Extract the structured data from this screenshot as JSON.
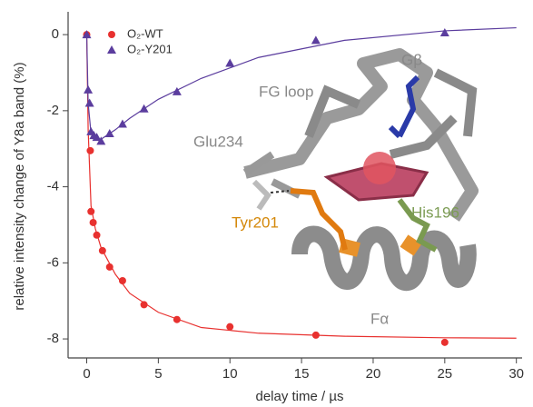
{
  "chart_data": {
    "type": "scatter",
    "xlabel": "delay time / µs",
    "ylabel": "relative intensity change of Y8a band (%)",
    "xlim": [
      -1.3,
      30.4
    ],
    "ylim": [
      -8.5,
      0.6
    ],
    "xticks": [
      0,
      5,
      10,
      15,
      20,
      25,
      30
    ],
    "yticks": [
      0,
      -2,
      -4,
      -6,
      -8
    ],
    "legend": "upper left",
    "series": [
      {
        "name": "O₂-WT",
        "color": "#e8312f",
        "marker": "circle",
        "x": [
          0,
          0.25,
          0.3,
          0.45,
          0.7,
          1.1,
          1.6,
          2.5,
          4,
          6.3,
          10,
          16,
          25
        ],
        "values": [
          0,
          -3.05,
          -4.65,
          -4.94,
          -5.27,
          -5.68,
          -6.11,
          -6.47,
          -7.1,
          -7.49,
          -7.68,
          -7.9,
          -8.09
        ],
        "fit": {
          "x": [
            0,
            0.1,
            0.3,
            0.6,
            1,
            2,
            3,
            5,
            8,
            12,
            18,
            25,
            30
          ],
          "values": [
            0,
            -2.5,
            -4.5,
            -5.1,
            -5.6,
            -6.3,
            -6.8,
            -7.3,
            -7.7,
            -7.85,
            -7.93,
            -7.97,
            -7.98
          ]
        }
      },
      {
        "name": "O₂-Y201",
        "color": "#5b3d9e",
        "marker": "triangle",
        "x": [
          0,
          0.1,
          0.2,
          0.3,
          0.5,
          0.7,
          1.0,
          1.6,
          2.5,
          4,
          6.3,
          10,
          16,
          25
        ],
        "values": [
          0,
          -1.45,
          -1.8,
          -2.55,
          -2.65,
          -2.7,
          -2.8,
          -2.6,
          -2.35,
          -1.95,
          -1.5,
          -0.75,
          -0.15,
          0.05
        ],
        "fit": {
          "x": [
            0,
            0.1,
            0.3,
            0.6,
            1,
            2,
            3,
            5,
            8,
            12,
            18,
            25,
            30
          ],
          "values": [
            0,
            -1.8,
            -2.6,
            -2.75,
            -2.75,
            -2.5,
            -2.2,
            -1.7,
            -1.15,
            -0.6,
            -0.15,
            0.1,
            0.18
          ]
        }
      }
    ],
    "annotations": [
      "FG loop",
      "Glu234",
      "Tyr201",
      "His196",
      "Gβ",
      "Fα"
    ]
  }
}
